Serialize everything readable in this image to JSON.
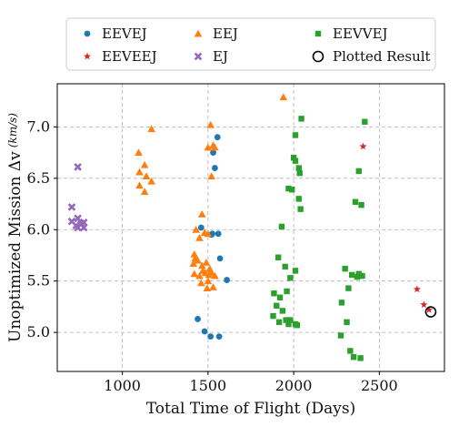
{
  "chart_data": {
    "type": "scatter",
    "title": "",
    "xlabel": "Total Time of Flight (Days)",
    "ylabel": "Unoptimized Mission Δv (km/s)",
    "ylabel_main": "Unoptimized Mission Δv",
    "ylabel_unit": "(km/s)",
    "xlim": [
      620,
      2880
    ],
    "ylim": [
      4.62,
      7.42
    ],
    "xticks": [
      1000,
      1500,
      2000,
      2500
    ],
    "yticks": [
      5.0,
      5.5,
      6.0,
      6.5,
      7.0
    ],
    "xtick_labels": [
      "1000",
      "1500",
      "2000",
      "2500"
    ],
    "ytick_labels": [
      "5.0",
      "5.5",
      "6.0",
      "6.5",
      "7.0"
    ],
    "grid": true,
    "legend_position": "top, above plot",
    "series": [
      {
        "name": "EEVEJ",
        "marker": "circle",
        "color": "#1f77b4",
        "points": [
          [
            1460,
            6.02
          ],
          [
            1530,
            6.75
          ],
          [
            1540,
            6.6
          ],
          [
            1555,
            6.9
          ],
          [
            1520,
            5.95
          ],
          [
            1525,
            5.96
          ],
          [
            1560,
            5.96
          ],
          [
            1570,
            5.72
          ],
          [
            1610,
            5.51
          ],
          [
            1440,
            5.13
          ],
          [
            1480,
            5.01
          ],
          [
            1515,
            4.96
          ],
          [
            1565,
            4.96
          ]
        ]
      },
      {
        "name": "EEJ",
        "marker": "triangle",
        "color": "#ff7f0e",
        "points": [
          [
            1940,
            7.29
          ],
          [
            1515,
            7.02
          ],
          [
            1500,
            6.8
          ],
          [
            1530,
            6.82
          ],
          [
            1540,
            6.8
          ],
          [
            1520,
            6.52
          ],
          [
            1170,
            6.98
          ],
          [
            1095,
            6.75
          ],
          [
            1130,
            6.63
          ],
          [
            1100,
            6.56
          ],
          [
            1140,
            6.52
          ],
          [
            1170,
            6.47
          ],
          [
            1100,
            6.43
          ],
          [
            1130,
            6.37
          ],
          [
            1465,
            6.15
          ],
          [
            1430,
            6.0
          ],
          [
            1480,
            5.97
          ],
          [
            1500,
            5.96
          ],
          [
            1450,
            5.92
          ],
          [
            1420,
            5.76
          ],
          [
            1425,
            5.72
          ],
          [
            1415,
            5.67
          ],
          [
            1440,
            5.7
          ],
          [
            1465,
            5.65
          ],
          [
            1490,
            5.68
          ],
          [
            1510,
            5.62
          ],
          [
            1470,
            5.6
          ],
          [
            1420,
            5.57
          ],
          [
            1450,
            5.55
          ],
          [
            1485,
            5.58
          ],
          [
            1505,
            5.56
          ],
          [
            1520,
            5.58
          ],
          [
            1540,
            5.55
          ],
          [
            1460,
            5.48
          ],
          [
            1500,
            5.5
          ],
          [
            1495,
            5.43
          ],
          [
            1530,
            5.44
          ]
        ]
      },
      {
        "name": "EEVVEJ",
        "marker": "square",
        "color": "#2ca02c",
        "points": [
          [
            2045,
            7.08
          ],
          [
            2010,
            6.92
          ],
          [
            2000,
            6.7
          ],
          [
            2010,
            6.67
          ],
          [
            2030,
            6.6
          ],
          [
            2035,
            6.55
          ],
          [
            1970,
            6.4
          ],
          [
            1990,
            6.39
          ],
          [
            2030,
            6.3
          ],
          [
            2040,
            6.2
          ],
          [
            1930,
            6.03
          ],
          [
            1910,
            5.73
          ],
          [
            1950,
            5.64
          ],
          [
            1980,
            5.53
          ],
          [
            2010,
            5.6
          ],
          [
            1885,
            5.38
          ],
          [
            1920,
            5.34
          ],
          [
            1960,
            5.4
          ],
          [
            1900,
            5.26
          ],
          [
            1935,
            5.21
          ],
          [
            1880,
            5.16
          ],
          [
            1955,
            5.12
          ],
          [
            1915,
            5.1
          ],
          [
            1970,
            5.08
          ],
          [
            1980,
            5.12
          ],
          [
            2010,
            5.08
          ],
          [
            2020,
            5.07
          ],
          [
            2415,
            7.05
          ],
          [
            2380,
            6.57
          ],
          [
            2360,
            6.27
          ],
          [
            2395,
            6.24
          ],
          [
            2300,
            5.62
          ],
          [
            2340,
            5.56
          ],
          [
            2370,
            5.54
          ],
          [
            2380,
            5.57
          ],
          [
            2390,
            5.55
          ],
          [
            2400,
            5.55
          ],
          [
            2320,
            5.43
          ],
          [
            2280,
            5.29
          ],
          [
            2310,
            5.1
          ],
          [
            2275,
            4.97
          ],
          [
            2330,
            4.82
          ],
          [
            2350,
            4.76
          ],
          [
            2390,
            4.75
          ]
        ]
      },
      {
        "name": "EEVEEJ",
        "marker": "star",
        "color": "#d62728",
        "points": [
          [
            2405,
            6.81
          ],
          [
            2720,
            5.42
          ],
          [
            2760,
            5.27
          ],
          [
            2790,
            5.22
          ]
        ]
      },
      {
        "name": "EJ",
        "marker": "x",
        "color": "#9467bd",
        "points": [
          [
            740,
            6.61
          ],
          [
            705,
            6.22
          ],
          [
            705,
            6.08
          ],
          [
            740,
            6.11
          ],
          [
            760,
            6.06
          ],
          [
            775,
            6.07
          ],
          [
            730,
            6.04
          ],
          [
            740,
            6.02
          ],
          [
            775,
            6.02
          ]
        ]
      },
      {
        "name": "Plotted Result",
        "marker": "ring",
        "color": "#000000",
        "points": [
          [
            2800,
            5.2
          ]
        ]
      }
    ]
  }
}
